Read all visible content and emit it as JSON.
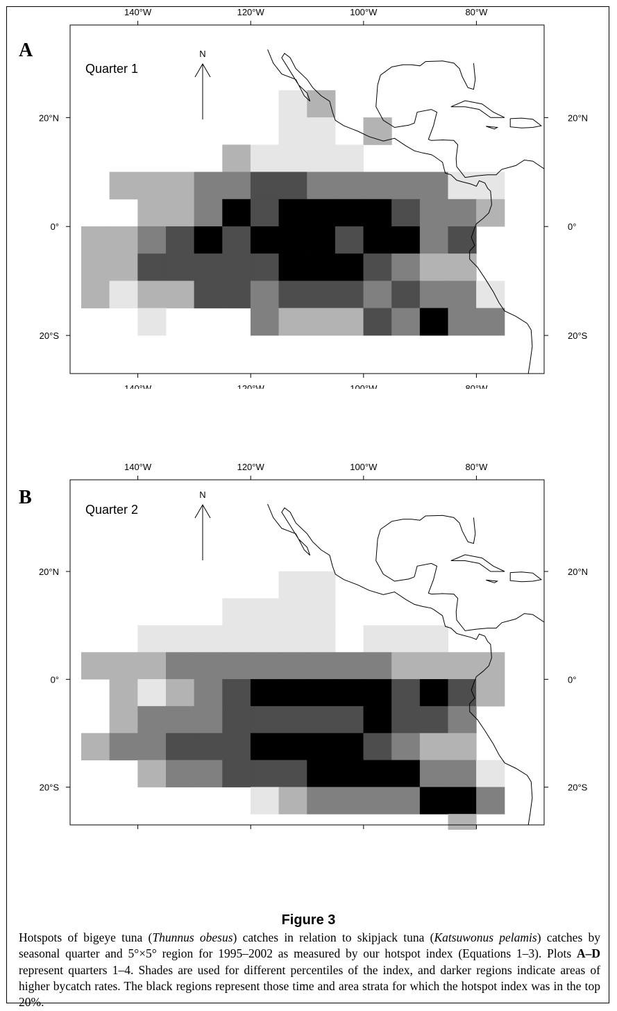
{
  "figure": {
    "title": "Figure 3",
    "caption": {
      "species1_common": "Hotspots of bigeye tuna (",
      "species1_latin": "Thunnus obesus",
      "species2_pre": ") catches in relation to skipjack tuna (",
      "species2_latin": "Katsuwonus pelamis",
      "body1": ") catches by seasonal quarter and 5°×5° region for 1995–2002 as measured by our hotspot index (Equations 1–3). Plots ",
      "plots_ref": "A–D",
      "body2": " represent quarters 1–4. Shades are used for different percentiles of the index, and darker regions indicate areas of higher bycatch rates. The black regions represent those time and area strata for which the hotspot index was in the top 20%."
    }
  },
  "map_axes": {
    "lon_ticks": [
      -140,
      -120,
      -100,
      -80
    ],
    "lon_labels": [
      "140°W",
      "120°W",
      "100°W",
      "80°W"
    ],
    "lat_ticks": [
      20,
      0,
      -20
    ],
    "lat_labels": [
      "20°N",
      "0°",
      "20°S"
    ],
    "lon_range": [
      -152,
      -68
    ],
    "lat_range": [
      -27,
      37
    ],
    "north_label": "N"
  },
  "shade_colors": [
    "#e6e6e6",
    "#b3b3b3",
    "#808080",
    "#4d4d4d",
    "#000000"
  ],
  "panels": [
    {
      "letter": "A",
      "quarter_label": "Quarter 1",
      "grid_comment": "rows from lat 25 down to -25 in 5° bands; each cell [lon_west, shade_index 0-4]",
      "cells": [
        {
          "lat": 25,
          "cells": [
            [
              -115,
              0
            ],
            [
              -110,
              1
            ]
          ]
        },
        {
          "lat": 20,
          "cells": [
            [
              -115,
              0
            ],
            [
              -110,
              0
            ],
            [
              -100,
              1
            ]
          ]
        },
        {
          "lat": 15,
          "cells": [
            [
              -125,
              1
            ],
            [
              -120,
              0
            ],
            [
              -115,
              0
            ],
            [
              -110,
              0
            ],
            [
              -105,
              0
            ]
          ]
        },
        {
          "lat": 10,
          "cells": [
            [
              -145,
              1
            ],
            [
              -140,
              1
            ],
            [
              -135,
              1
            ],
            [
              -130,
              2
            ],
            [
              -125,
              2
            ],
            [
              -120,
              3
            ],
            [
              -115,
              3
            ],
            [
              -110,
              2
            ],
            [
              -105,
              2
            ],
            [
              -100,
              2
            ],
            [
              -95,
              2
            ],
            [
              -90,
              2
            ],
            [
              -85,
              0
            ],
            [
              -80,
              0
            ]
          ]
        },
        {
          "lat": 5,
          "cells": [
            [
              -140,
              1
            ],
            [
              -135,
              1
            ],
            [
              -130,
              2
            ],
            [
              -125,
              4
            ],
            [
              -120,
              3
            ],
            [
              -115,
              4
            ],
            [
              -110,
              4
            ],
            [
              -105,
              4
            ],
            [
              -100,
              4
            ],
            [
              -95,
              3
            ],
            [
              -90,
              2
            ],
            [
              -85,
              2
            ],
            [
              -80,
              1
            ]
          ]
        },
        {
          "lat": 0,
          "cells": [
            [
              -150,
              1
            ],
            [
              -145,
              1
            ],
            [
              -140,
              2
            ],
            [
              -135,
              3
            ],
            [
              -130,
              4
            ],
            [
              -125,
              3
            ],
            [
              -120,
              4
            ],
            [
              -115,
              4
            ],
            [
              -110,
              4
            ],
            [
              -105,
              3
            ],
            [
              -100,
              4
            ],
            [
              -95,
              4
            ],
            [
              -90,
              2
            ],
            [
              -85,
              3
            ]
          ]
        },
        {
          "lat": -5,
          "cells": [
            [
              -150,
              1
            ],
            [
              -145,
              1
            ],
            [
              -140,
              3
            ],
            [
              -135,
              3
            ],
            [
              -130,
              3
            ],
            [
              -125,
              3
            ],
            [
              -120,
              3
            ],
            [
              -115,
              4
            ],
            [
              -110,
              4
            ],
            [
              -105,
              4
            ],
            [
              -100,
              3
            ],
            [
              -95,
              2
            ],
            [
              -90,
              1
            ],
            [
              -85,
              1
            ]
          ]
        },
        {
          "lat": -10,
          "cells": [
            [
              -150,
              1
            ],
            [
              -145,
              0
            ],
            [
              -140,
              1
            ],
            [
              -135,
              1
            ],
            [
              -130,
              3
            ],
            [
              -125,
              3
            ],
            [
              -120,
              2
            ],
            [
              -115,
              3
            ],
            [
              -110,
              3
            ],
            [
              -105,
              3
            ],
            [
              -100,
              2
            ],
            [
              -95,
              3
            ],
            [
              -90,
              2
            ],
            [
              -85,
              2
            ],
            [
              -80,
              0
            ]
          ]
        },
        {
          "lat": -15,
          "cells": [
            [
              -140,
              0
            ],
            [
              -120,
              2
            ],
            [
              -115,
              1
            ],
            [
              -110,
              1
            ],
            [
              -105,
              1
            ],
            [
              -100,
              3
            ],
            [
              -95,
              2
            ],
            [
              -90,
              4
            ],
            [
              -85,
              2
            ],
            [
              -80,
              2
            ]
          ]
        }
      ]
    },
    {
      "letter": "B",
      "quarter_label": "Quarter 2",
      "grid_comment": "rows from lat 25 down to -25 in 5° bands; each cell [lon_west, shade_index 0-4]",
      "cells": [
        {
          "lat": 20,
          "cells": [
            [
              -115,
              0
            ],
            [
              -110,
              0
            ]
          ]
        },
        {
          "lat": 15,
          "cells": [
            [
              -125,
              0
            ],
            [
              -120,
              0
            ],
            [
              -115,
              0
            ],
            [
              -110,
              0
            ]
          ]
        },
        {
          "lat": 10,
          "cells": [
            [
              -140,
              0
            ],
            [
              -135,
              0
            ],
            [
              -130,
              0
            ],
            [
              -125,
              0
            ],
            [
              -120,
              0
            ],
            [
              -115,
              0
            ],
            [
              -110,
              0
            ],
            [
              -100,
              0
            ],
            [
              -95,
              0
            ],
            [
              -90,
              0
            ]
          ]
        },
        {
          "lat": 5,
          "cells": [
            [
              -150,
              1
            ],
            [
              -145,
              1
            ],
            [
              -140,
              1
            ],
            [
              -135,
              2
            ],
            [
              -130,
              2
            ],
            [
              -125,
              2
            ],
            [
              -120,
              2
            ],
            [
              -115,
              2
            ],
            [
              -110,
              2
            ],
            [
              -105,
              2
            ],
            [
              -100,
              2
            ],
            [
              -95,
              1
            ],
            [
              -90,
              1
            ],
            [
              -85,
              1
            ],
            [
              -80,
              1
            ]
          ]
        },
        {
          "lat": 0,
          "cells": [
            [
              -145,
              1
            ],
            [
              -140,
              0
            ],
            [
              -135,
              1
            ],
            [
              -130,
              2
            ],
            [
              -125,
              3
            ],
            [
              -120,
              4
            ],
            [
              -115,
              4
            ],
            [
              -110,
              4
            ],
            [
              -105,
              4
            ],
            [
              -100,
              4
            ],
            [
              -95,
              3
            ],
            [
              -90,
              4
            ],
            [
              -85,
              3
            ],
            [
              -80,
              1
            ]
          ]
        },
        {
          "lat": -5,
          "cells": [
            [
              -145,
              1
            ],
            [
              -140,
              2
            ],
            [
              -135,
              2
            ],
            [
              -130,
              2
            ],
            [
              -125,
              3
            ],
            [
              -120,
              3
            ],
            [
              -115,
              3
            ],
            [
              -110,
              3
            ],
            [
              -105,
              3
            ],
            [
              -100,
              4
            ],
            [
              -95,
              3
            ],
            [
              -90,
              3
            ],
            [
              -85,
              2
            ]
          ]
        },
        {
          "lat": -10,
          "cells": [
            [
              -150,
              1
            ],
            [
              -145,
              2
            ],
            [
              -140,
              2
            ],
            [
              -135,
              3
            ],
            [
              -130,
              3
            ],
            [
              -125,
              3
            ],
            [
              -120,
              4
            ],
            [
              -115,
              4
            ],
            [
              -110,
              4
            ],
            [
              -105,
              4
            ],
            [
              -100,
              3
            ],
            [
              -95,
              2
            ],
            [
              -90,
              1
            ],
            [
              -85,
              1
            ]
          ]
        },
        {
          "lat": -15,
          "cells": [
            [
              -140,
              1
            ],
            [
              -135,
              2
            ],
            [
              -130,
              2
            ],
            [
              -125,
              3
            ],
            [
              -120,
              3
            ],
            [
              -115,
              3
            ],
            [
              -110,
              4
            ],
            [
              -105,
              4
            ],
            [
              -100,
              4
            ],
            [
              -95,
              4
            ],
            [
              -90,
              2
            ],
            [
              -85,
              2
            ],
            [
              -80,
              0
            ]
          ]
        },
        {
          "lat": -20,
          "cells": [
            [
              -120,
              0
            ],
            [
              -115,
              1
            ],
            [
              -110,
              2
            ],
            [
              -105,
              2
            ],
            [
              -100,
              2
            ],
            [
              -95,
              2
            ],
            [
              -90,
              4
            ],
            [
              -85,
              4
            ],
            [
              -80,
              2
            ]
          ]
        },
        {
          "lat": -25,
          "cells": [
            [
              -85,
              1
            ]
          ]
        }
      ]
    }
  ]
}
